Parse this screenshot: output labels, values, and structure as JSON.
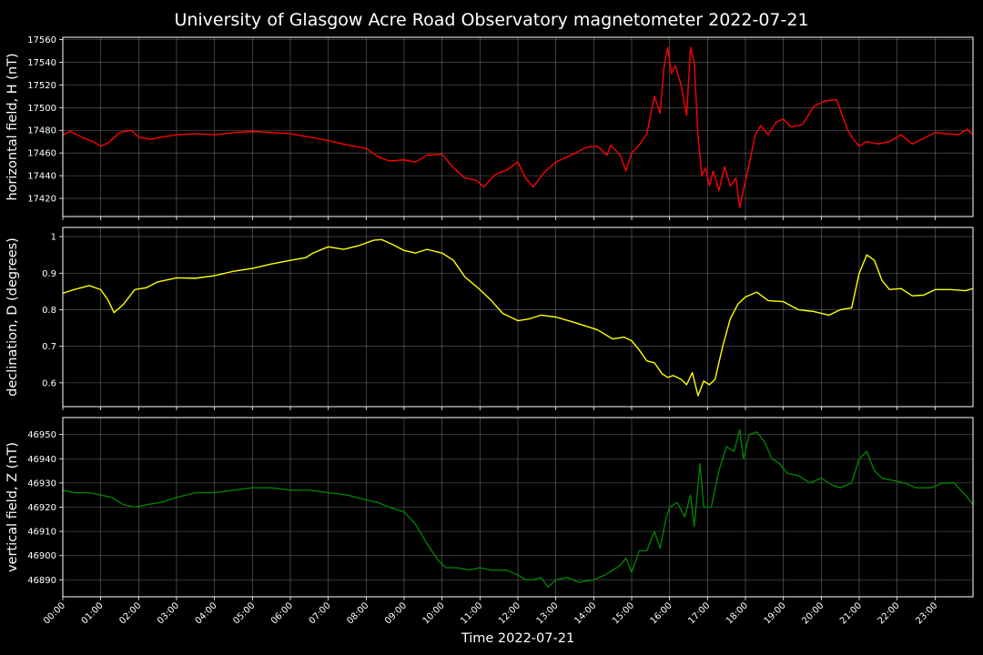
{
  "chart_data": {
    "type": "line",
    "title": "University of Glasgow Acre Road Observatory magnetometer 2022-07-21",
    "xlabel": "Time 2022-07-21",
    "x_tick_labels": [
      "00:00",
      "01:00",
      "02:00",
      "03:00",
      "04:00",
      "05:00",
      "06:00",
      "07:00",
      "08:00",
      "09:00",
      "10:00",
      "11:00",
      "12:00",
      "13:00",
      "14:00",
      "15:00",
      "16:00",
      "17:00",
      "18:00",
      "19:00",
      "20:00",
      "21:00",
      "22:00",
      "23:00"
    ],
    "xlim": [
      0,
      24
    ],
    "grid": true,
    "x_unit": "hour of day",
    "panels": [
      {
        "ylabel": "horizontal field, H (nT)",
        "ylim": [
          17404,
          17562
        ],
        "yticks": [
          17420,
          17440,
          17460,
          17480,
          17500,
          17520,
          17540,
          17560
        ],
        "series": [
          {
            "color": "#ff0000",
            "x": [
              0,
              0.2,
              0.5,
              0.8,
              1.0,
              1.2,
              1.5,
              1.8,
              2.0,
              2.3,
              2.6,
              3.0,
              3.5,
              4.0,
              4.5,
              5.0,
              5.5,
              6.0,
              6.5,
              7.0,
              7.5,
              8.0,
              8.3,
              8.6,
              9.0,
              9.3,
              9.6,
              10.0,
              10.3,
              10.6,
              10.9,
              11.1,
              11.4,
              11.7,
              12.0,
              12.2,
              12.4,
              12.7,
              13.0,
              13.4,
              13.8,
              14.1,
              14.35,
              14.45,
              14.7,
              14.85,
              15.0,
              15.2,
              15.4,
              15.6,
              15.75,
              15.85,
              15.95,
              16.05,
              16.15,
              16.3,
              16.45,
              16.55,
              16.65,
              16.75,
              16.85,
              16.95,
              17.05,
              17.15,
              17.3,
              17.45,
              17.6,
              17.75,
              17.85,
              17.95,
              18.1,
              18.25,
              18.4,
              18.6,
              18.8,
              19.0,
              19.2,
              19.5,
              19.8,
              20.1,
              20.4,
              20.7,
              20.85,
              21.0,
              21.2,
              21.5,
              21.8,
              22.1,
              22.4,
              22.7,
              23.0,
              23.3,
              23.6,
              23.85,
              24.0
            ],
            "y": [
              17476,
              17479,
              17474,
              17470,
              17466,
              17469,
              17478,
              17480,
              17474,
              17472,
              17474,
              17476,
              17477,
              17476,
              17478,
              17479,
              17478,
              17477,
              17474,
              17471,
              17467,
              17464,
              17457,
              17453,
              17454,
              17452,
              17458,
              17459,
              17447,
              17438,
              17436,
              17430,
              17441,
              17445,
              17452,
              17438,
              17430,
              17443,
              17452,
              17458,
              17465,
              17466,
              17458,
              17467,
              17458,
              17444,
              17460,
              17467,
              17477,
              17510,
              17495,
              17535,
              17553,
              17530,
              17537,
              17520,
              17493,
              17553,
              17540,
              17475,
              17440,
              17447,
              17431,
              17444,
              17427,
              17448,
              17431,
              17438,
              17412,
              17428,
              17450,
              17475,
              17484,
              17476,
              17487,
              17490,
              17483,
              17485,
              17501,
              17506,
              17507,
              17480,
              17472,
              17466,
              17470,
              17468,
              17470,
              17476,
              17468,
              17473,
              17478,
              17477,
              17476,
              17481,
              17476
            ]
          }
        ]
      },
      {
        "ylabel": "declination, D (degrees)",
        "ylim": [
          0.535,
          1.025
        ],
        "yticks": [
          0.6,
          0.7,
          0.8,
          0.9,
          1.0
        ],
        "series": [
          {
            "color": "#ffff00",
            "x": [
              0,
              0.3,
              0.7,
              1.0,
              1.2,
              1.35,
              1.6,
              1.9,
              2.2,
              2.5,
              3.0,
              3.5,
              4.0,
              4.5,
              5.0,
              5.5,
              6.0,
              6.4,
              6.6,
              7.0,
              7.4,
              7.8,
              8.2,
              8.4,
              8.7,
              9.0,
              9.3,
              9.6,
              10.0,
              10.3,
              10.6,
              11.0,
              11.3,
              11.6,
              12.0,
              12.3,
              12.6,
              13.0,
              13.4,
              13.8,
              14.1,
              14.5,
              14.8,
              15.0,
              15.2,
              15.4,
              15.6,
              15.8,
              15.95,
              16.1,
              16.3,
              16.45,
              16.6,
              16.75,
              16.9,
              17.05,
              17.2,
              17.4,
              17.6,
              17.8,
              18.0,
              18.3,
              18.6,
              19.0,
              19.4,
              19.8,
              20.2,
              20.5,
              20.8,
              21.0,
              21.2,
              21.4,
              21.6,
              21.8,
              22.1,
              22.4,
              22.7,
              23.0,
              23.4,
              23.8,
              24.0
            ],
            "y": [
              0.845,
              0.855,
              0.866,
              0.855,
              0.825,
              0.792,
              0.815,
              0.855,
              0.86,
              0.876,
              0.887,
              0.886,
              0.893,
              0.905,
              0.913,
              0.925,
              0.935,
              0.942,
              0.955,
              0.972,
              0.965,
              0.975,
              0.99,
              0.992,
              0.978,
              0.962,
              0.955,
              0.965,
              0.955,
              0.935,
              0.89,
              0.855,
              0.825,
              0.79,
              0.77,
              0.775,
              0.785,
              0.78,
              0.768,
              0.755,
              0.745,
              0.72,
              0.725,
              0.715,
              0.69,
              0.66,
              0.655,
              0.625,
              0.615,
              0.62,
              0.61,
              0.595,
              0.628,
              0.565,
              0.605,
              0.595,
              0.61,
              0.7,
              0.775,
              0.815,
              0.835,
              0.848,
              0.825,
              0.822,
              0.8,
              0.795,
              0.785,
              0.8,
              0.805,
              0.9,
              0.95,
              0.935,
              0.88,
              0.855,
              0.858,
              0.838,
              0.84,
              0.855,
              0.855,
              0.852,
              0.858
            ]
          }
        ]
      },
      {
        "ylabel": "vertical field, Z (nT)",
        "ylim": [
          46883,
          46957
        ],
        "yticks": [
          46890,
          46900,
          46910,
          46920,
          46930,
          46940,
          46950
        ],
        "series": [
          {
            "color": "#008000",
            "x": [
              0,
              0.3,
              0.7,
              1.0,
              1.3,
              1.6,
              1.9,
              2.2,
              2.6,
              3.0,
              3.5,
              4.0,
              4.5,
              5.0,
              5.5,
              6.0,
              6.5,
              7.0,
              7.5,
              8.0,
              8.3,
              8.6,
              9.0,
              9.3,
              9.6,
              9.9,
              10.1,
              10.4,
              10.7,
              11.0,
              11.3,
              11.7,
              12.0,
              12.2,
              12.4,
              12.6,
              12.8,
              13.0,
              13.3,
              13.6,
              14.0,
              14.3,
              14.5,
              14.7,
              14.85,
              15.0,
              15.2,
              15.4,
              15.6,
              15.75,
              15.9,
              16.0,
              16.2,
              16.4,
              16.55,
              16.65,
              16.8,
              16.9,
              17.1,
              17.3,
              17.5,
              17.7,
              17.85,
              17.95,
              18.1,
              18.3,
              18.5,
              18.7,
              18.9,
              19.1,
              19.4,
              19.7,
              20.0,
              20.3,
              20.5,
              20.8,
              21.0,
              21.2,
              21.4,
              21.6,
              21.9,
              22.2,
              22.5,
              22.9,
              23.2,
              23.5,
              23.8,
              24.0
            ],
            "y": [
              46927,
              46926,
              46926,
              46925,
              46924,
              46921,
              46920,
              46921,
              46922,
              46924,
              46926,
              46926,
              46927,
              46928,
              46928,
              46927,
              46927,
              46926,
              46925,
              46923,
              46922,
              46920,
              46918,
              46913,
              46905,
              46898,
              46895,
              46895,
              46894,
              46895,
              46894,
              46894,
              46892,
              46890,
              46890,
              46891,
              46887,
              46890,
              46891,
              46889,
              46890,
              46892,
              46894,
              46896,
              46899,
              46893,
              46902,
              46902,
              46910,
              46903,
              46915,
              46920,
              46922,
              46916,
              46925,
              46912,
              46938,
              46920,
              46920,
              46935,
              46945,
              46943,
              46952,
              46940,
              46950,
              46951,
              46947,
              46940,
              46938,
              46934,
              46933,
              46930,
              46932,
              46929,
              46928,
              46930,
              46940,
              46943,
              46935,
              46932,
              46931,
              46930,
              46928,
              46928,
              46930,
              46930,
              46925,
              46921
            ]
          }
        ]
      }
    ]
  }
}
